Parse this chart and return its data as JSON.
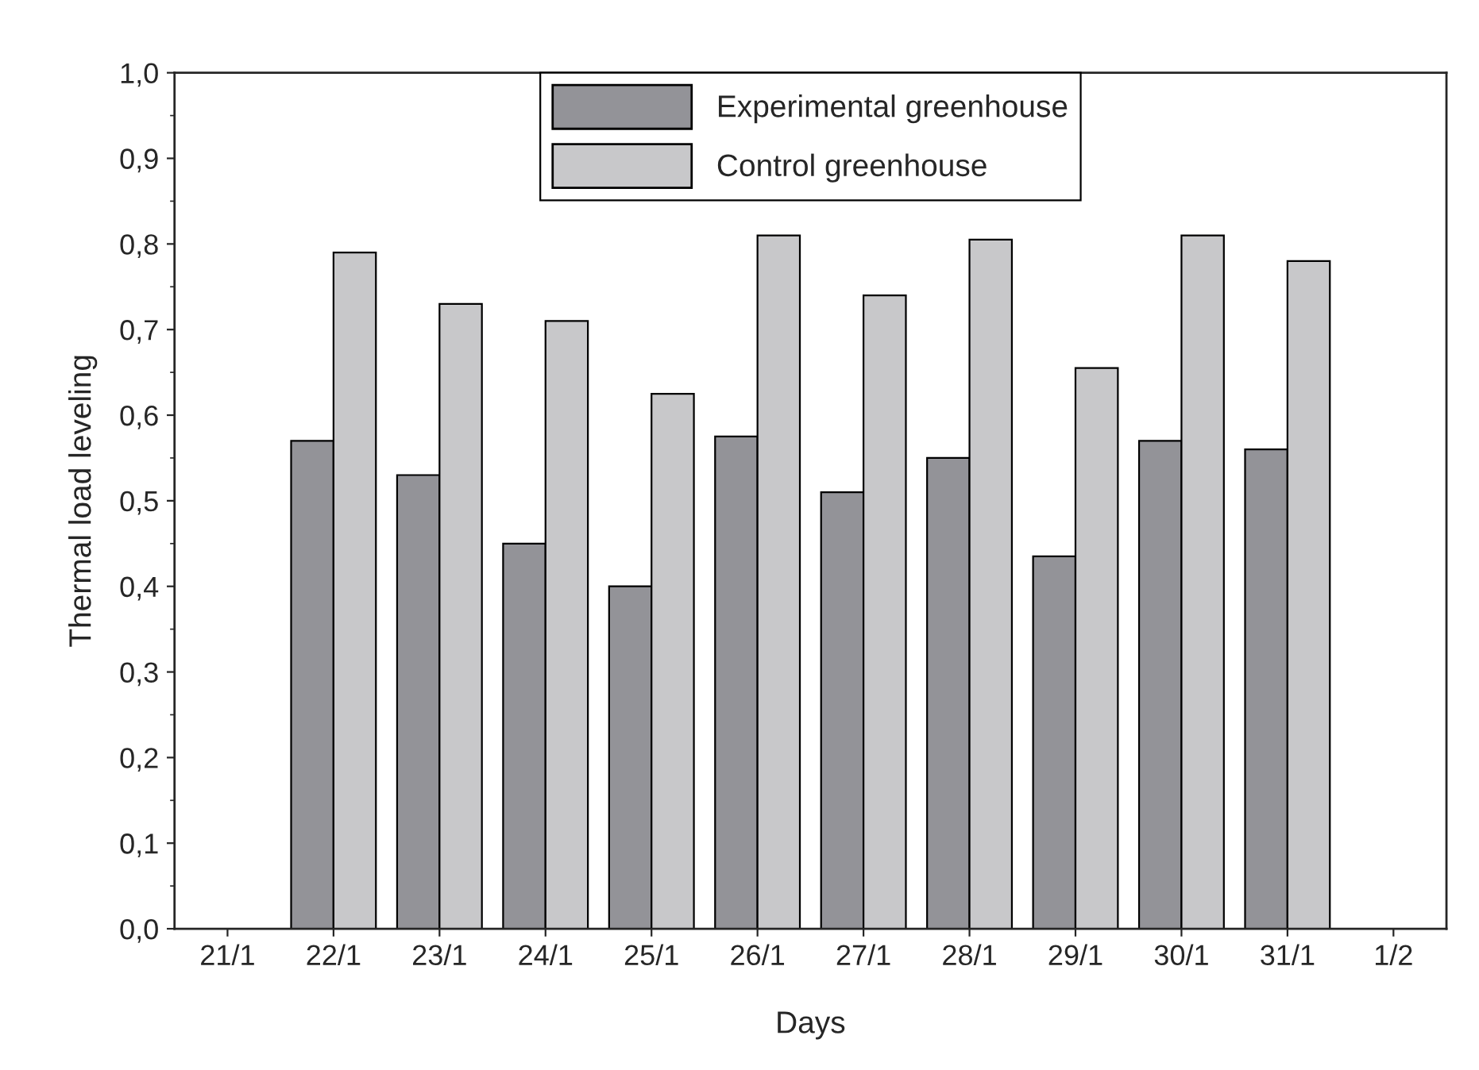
{
  "chart_data": {
    "type": "bar",
    "xlabel": "Days",
    "ylabel": "Thermal load leveling",
    "categories": [
      "21/1",
      "22/1",
      "23/1",
      "24/1",
      "25/1",
      "26/1",
      "27/1",
      "28/1",
      "29/1",
      "30/1",
      "31/1",
      "1/2"
    ],
    "series": [
      {
        "name": "Experimental greenhouse",
        "color": "#939398",
        "values": [
          null,
          0.57,
          0.53,
          0.45,
          0.4,
          0.575,
          0.51,
          0.55,
          0.435,
          0.57,
          0.56,
          null
        ]
      },
      {
        "name": "Control greenhouse",
        "color": "#c8c8ca",
        "values": [
          null,
          0.79,
          0.73,
          0.71,
          0.625,
          0.81,
          0.74,
          0.805,
          0.655,
          0.81,
          0.78,
          null
        ]
      }
    ],
    "ylim": [
      0,
      1
    ],
    "yticks": [
      {
        "value": 0,
        "label": "0,0"
      },
      {
        "value": 0.1,
        "label": "0,1"
      },
      {
        "value": 0.2,
        "label": "0,2"
      },
      {
        "value": 0.3,
        "label": "0,3"
      },
      {
        "value": 0.4,
        "label": "0,4"
      },
      {
        "value": 0.5,
        "label": "0,5"
      },
      {
        "value": 0.6,
        "label": "0,6"
      },
      {
        "value": 0.7,
        "label": "0,7"
      },
      {
        "value": 0.8,
        "label": "0,8"
      },
      {
        "value": 0.9,
        "label": "0,9"
      },
      {
        "value": 1,
        "label": "1,0"
      }
    ],
    "legend": "top",
    "grid": false
  }
}
